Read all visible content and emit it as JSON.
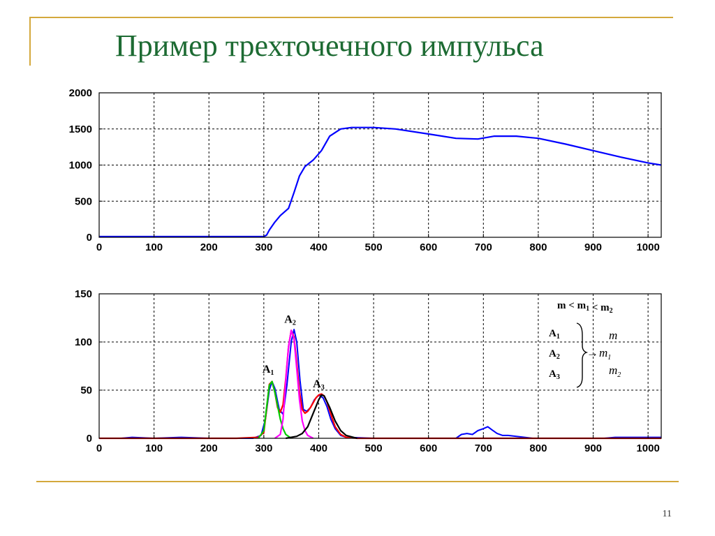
{
  "slide": {
    "title": "Пример трехточечного импульса",
    "page_number": "11",
    "frame_color": "#d4a83c",
    "title_color": "#1d6b33"
  },
  "chart_data": [
    {
      "type": "line",
      "xlim": [
        0,
        1024
      ],
      "ylim": [
        0,
        2000
      ],
      "x_ticks": [
        0,
        100,
        200,
        300,
        400,
        500,
        600,
        700,
        800,
        900,
        1000
      ],
      "y_ticks": [
        0,
        500,
        1000,
        1500,
        2000
      ],
      "grid": true,
      "series": [
        {
          "color": "#0000ff",
          "x": [
            0,
            100,
            200,
            300,
            305,
            310,
            320,
            330,
            345,
            355,
            365,
            375,
            390,
            405,
            420,
            440,
            460,
            500,
            540,
            600,
            650,
            690,
            720,
            760,
            800,
            850,
            900,
            950,
            1000,
            1024
          ],
          "y": [
            10,
            10,
            10,
            10,
            30,
            100,
            210,
            300,
            400,
            620,
            850,
            980,
            1070,
            1200,
            1400,
            1500,
            1520,
            1520,
            1500,
            1430,
            1370,
            1360,
            1400,
            1400,
            1370,
            1290,
            1200,
            1110,
            1030,
            1000
          ]
        }
      ]
    },
    {
      "type": "line",
      "xlim": [
        0,
        1024
      ],
      "ylim": [
        0,
        150
      ],
      "x_ticks": [
        0,
        100,
        200,
        300,
        400,
        500,
        600,
        700,
        800,
        900,
        1000
      ],
      "y_ticks": [
        0,
        50,
        100,
        150
      ],
      "grid": true,
      "peak_labels": [
        {
          "text": "A",
          "sub": "1",
          "x": 308,
          "y": 68
        },
        {
          "text": "A",
          "sub": "2",
          "x": 348,
          "y": 120
        },
        {
          "text": "A",
          "sub": "3",
          "x": 400,
          "y": 53
        }
      ],
      "legend": {
        "condition": {
          "m": "m",
          "lt1": " < ",
          "m1": "m",
          "s1": "1",
          "lt2": " < ",
          "m2": "m",
          "s2": "2"
        },
        "left": [
          {
            "text": "A",
            "sub": "1"
          },
          {
            "text": "A",
            "sub": "2"
          },
          {
            "text": "A",
            "sub": "3"
          }
        ],
        "arrow": "→",
        "right": [
          {
            "text": "m",
            "sub": ""
          },
          {
            "text": "m",
            "sub": "1"
          },
          {
            "text": "m",
            "sub": "2"
          }
        ]
      },
      "series": [
        {
          "color": "#0000ff",
          "x": [
            0,
            40,
            60,
            100,
            150,
            200,
            250,
            280,
            295,
            303,
            310,
            315,
            320,
            328,
            335,
            342,
            350,
            355,
            360,
            366,
            372,
            378,
            385,
            392,
            400,
            408,
            415,
            422,
            430,
            440,
            450,
            500,
            540,
            600,
            650,
            660,
            670,
            680,
            690,
            700,
            708,
            715,
            725,
            735,
            745,
            760,
            775,
            790,
            850,
            920,
            940,
            1000,
            1024
          ],
          "y": [
            0,
            0,
            1,
            0,
            1,
            0,
            0,
            0,
            3,
            20,
            50,
            59,
            52,
            30,
            25,
            55,
            100,
            113,
            100,
            60,
            30,
            28,
            32,
            40,
            45,
            42,
            33,
            20,
            10,
            3,
            1,
            0,
            0,
            0,
            0,
            4,
            5,
            4,
            8,
            10,
            12,
            9,
            5,
            3,
            3,
            2,
            1,
            0,
            0,
            0,
            1,
            1,
            1
          ]
        },
        {
          "color": "#ff0000",
          "x": [
            0,
            250,
            290,
            300,
            305,
            310,
            315,
            320,
            325,
            330,
            335,
            340,
            345,
            350,
            355,
            360,
            365,
            370,
            375,
            380,
            385,
            390,
            395,
            400,
            405,
            410,
            415,
            420,
            425,
            430,
            440,
            450,
            470,
            550,
            1024
          ],
          "y": [
            0,
            0,
            1,
            6,
            30,
            56,
            59,
            48,
            32,
            27,
            35,
            62,
            95,
            112,
            105,
            78,
            48,
            30,
            26,
            28,
            32,
            37,
            42,
            45,
            46,
            44,
            38,
            29,
            20,
            12,
            4,
            1,
            0,
            0,
            0
          ]
        },
        {
          "color": "#00cc00",
          "x": [
            290,
            300,
            305,
            310,
            315,
            320,
            325,
            330,
            335,
            340,
            350
          ],
          "y": [
            0,
            8,
            32,
            55,
            59,
            48,
            34,
            20,
            10,
            4,
            0
          ]
        },
        {
          "color": "#ff00ff",
          "x": [
            320,
            330,
            335,
            340,
            345,
            350,
            355,
            360,
            365,
            370,
            375,
            380,
            390
          ],
          "y": [
            0,
            4,
            20,
            60,
            95,
            112,
            103,
            72,
            40,
            18,
            8,
            3,
            0
          ]
        },
        {
          "color": "#000000",
          "x": [
            340,
            360,
            370,
            380,
            390,
            400,
            405,
            410,
            420,
            430,
            440,
            450,
            470
          ],
          "y": [
            0,
            2,
            5,
            12,
            26,
            40,
            45,
            44,
            32,
            18,
            8,
            3,
            0
          ]
        }
      ]
    }
  ]
}
